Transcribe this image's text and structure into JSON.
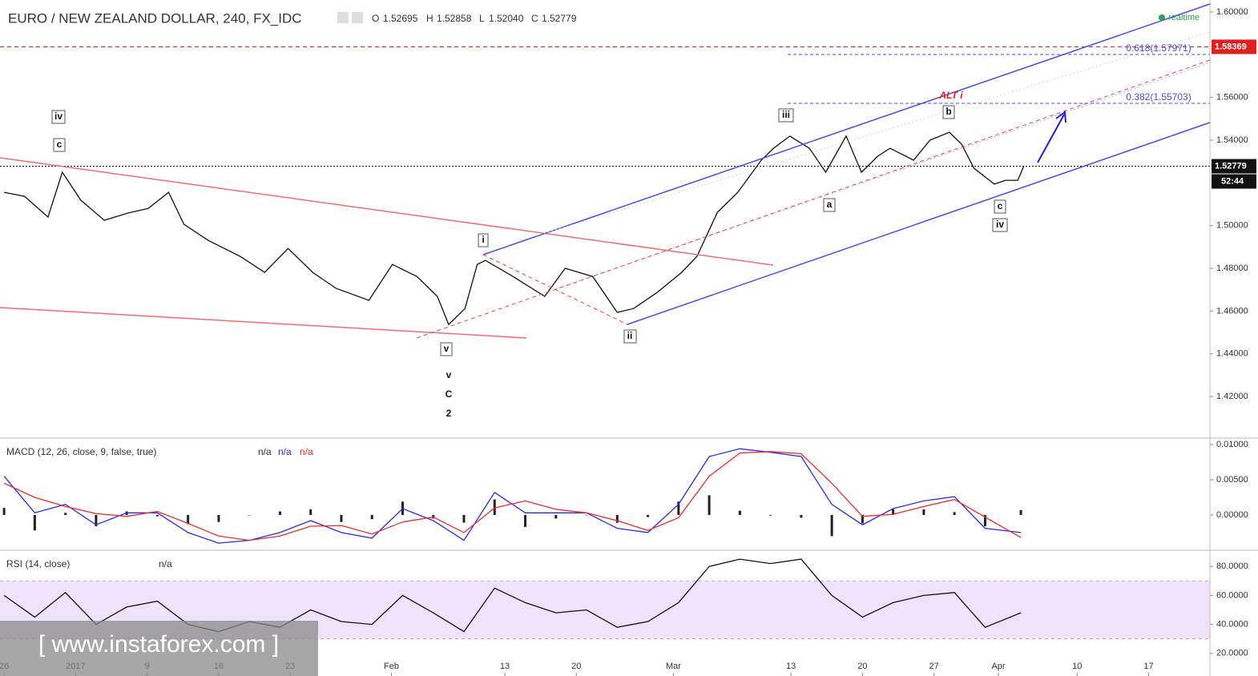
{
  "header": {
    "symbol": "EURO / NEW ZEALAND DOLLAR, 240, FX_IDC",
    "o_label": "O",
    "o": "1.52695",
    "h_label": "H",
    "h": "1.52858",
    "l_label": "L",
    "l": "1.52040",
    "c_label": "C",
    "c": "1.52779",
    "realtime": "realtime",
    "countdown": "52:44",
    "watermark": "[ www.instaforex.com ]"
  },
  "annotations": [
    "iv",
    "c",
    "v",
    "i",
    "ii",
    "iii",
    "a",
    "b",
    "ALT i",
    "c",
    "iv",
    "v",
    "C",
    "2",
    "0.618(1.57971)",
    "0.382(1.55703)"
  ],
  "chart_data": [
    {
      "type": "line",
      "xlim": [
        -0.4,
        118
      ],
      "ylim": [
        1.4009,
        1.6056
      ],
      "yticks": [
        {
          "value": 1.6,
          "label": "1.60000"
        },
        {
          "value": 1.56,
          "label": "1.56000"
        },
        {
          "value": 1.54,
          "label": "1.54000"
        },
        {
          "value": 1.5,
          "label": "1.50000"
        },
        {
          "value": 1.48,
          "label": "1.48000"
        },
        {
          "value": 1.46,
          "label": "1.46000"
        },
        {
          "value": 1.44,
          "label": "1.44000"
        },
        {
          "value": 1.42,
          "label": "1.42000"
        }
      ],
      "price_lines": [
        {
          "value": 1.58369,
          "label": "1.58369",
          "color": "#e02020"
        },
        {
          "value": 1.52779,
          "label": "1.52779",
          "color": "#111111"
        }
      ],
      "series": [
        {
          "name": "EURNZD",
          "color": "#111111",
          "x": [
            0,
            2,
            4.3,
            5.7,
            7.5,
            9.8,
            12.2,
            14.1,
            16.1,
            17.6,
            20,
            23.1,
            25.5,
            27.8,
            30.2,
            32.5,
            35.7,
            38,
            40.4,
            42.4,
            43.5,
            45.1,
            46.3,
            47.1,
            49.8,
            52.9,
            54.9,
            57.6,
            60,
            61.6,
            63.9,
            66.3,
            67.8,
            69.8,
            71.8,
            74.1,
            75.3,
            76.9,
            78.8,
            80.4,
            82.4,
            83.9,
            85.5,
            86.7,
            89,
            90.6,
            92.5,
            93.7,
            94.9,
            96.9,
            98,
            99.2,
            99.8
          ],
          "values": [
            1.5156,
            1.5137,
            1.504,
            1.525,
            1.5119,
            1.5025,
            1.506,
            1.508,
            1.5156,
            1.5006,
            1.493,
            1.4856,
            1.4781,
            1.4893,
            1.4781,
            1.4706,
            1.465,
            1.4818,
            1.4762,
            1.4669,
            1.4537,
            1.4612,
            1.4818,
            1.4837,
            1.4762,
            1.4669,
            1.48,
            1.4762,
            1.4594,
            1.4612,
            1.4687,
            1.4781,
            1.4856,
            1.5062,
            1.5156,
            1.5306,
            1.5362,
            1.5419,
            1.5362,
            1.525,
            1.5419,
            1.525,
            1.5325,
            1.5362,
            1.5306,
            1.54,
            1.5437,
            1.5381,
            1.5269,
            1.5194,
            1.5212,
            1.5212,
            1.528
          ]
        }
      ]
    },
    {
      "type": "line",
      "title": "MACD (12, 26, close, 9, false, true)",
      "status": [
        "n/a",
        "n/a",
        "n/a"
      ],
      "xlim": [
        -0.4,
        118
      ],
      "ylim": [
        -0.0049,
        0.0108
      ],
      "yticks": [
        {
          "value": 0.01,
          "label": "0.01000"
        },
        {
          "value": 0.005,
          "label": "0.00500"
        },
        {
          "value": 0,
          "label": "0.00000"
        }
      ],
      "x": [
        0,
        3,
        6,
        9,
        12,
        15,
        18,
        21,
        24,
        27,
        30,
        33,
        36,
        39,
        42,
        45,
        48,
        51,
        54,
        57,
        60,
        63,
        66,
        69,
        72,
        75,
        78,
        81,
        84,
        87,
        90,
        93,
        96,
        99.5
      ],
      "series": [
        {
          "name": "Histogram",
          "type": "bar",
          "color": "#222222",
          "values": [
            0.001,
            -0.0022,
            0.0003,
            -0.0016,
            0.0005,
            -0.0002,
            -0.0013,
            -0.001,
            0,
            0.0005,
            0.0008,
            -0.001,
            -0.0006,
            0.0019,
            -0.0005,
            -0.0011,
            0.0022,
            -0.0017,
            -0.0005,
            0,
            -0.0011,
            -0.0003,
            0.0019,
            0.0028,
            0.0006,
            -0.0001,
            -0.0004,
            -0.003,
            -0.0012,
            0.0008,
            0.0008,
            0.0004,
            -0.0016,
            0.0007
          ]
        },
        {
          "name": "MACD",
          "type": "line",
          "color": "#2a2aee",
          "values": [
            0.0055,
            0.0003,
            0.0015,
            -0.0014,
            0.0003,
            0.0003,
            -0.0025,
            -0.004,
            -0.0036,
            -0.0025,
            -0.0008,
            -0.0025,
            -0.0033,
            0.0009,
            -0.0008,
            -0.0036,
            0.0032,
            0.0003,
            0.0003,
            0.0003,
            -0.0019,
            -0.0025,
            0.0015,
            0.0083,
            0.0094,
            0.0089,
            0.0083,
            0.0015,
            -0.0014,
            0.0009,
            0.002,
            0.0026,
            -0.0019,
            -0.0025
          ]
        },
        {
          "name": "Signal",
          "type": "line",
          "color": "#ee2a2a",
          "values": [
            0.0045,
            0.0025,
            0.0012,
            0.0002,
            -0.0002,
            0.0005,
            -0.0012,
            -0.003,
            -0.0036,
            -0.003,
            -0.0016,
            -0.0015,
            -0.0027,
            -0.001,
            -0.0003,
            -0.0025,
            0.001,
            0.002,
            0.0008,
            0.0003,
            -0.0008,
            -0.0022,
            -0.0004,
            0.0055,
            0.0088,
            0.009,
            0.0087,
            0.0045,
            -0.0002,
            0.0001,
            0.0012,
            0.0022,
            -0.0003,
            -0.0032
          ]
        }
      ]
    },
    {
      "type": "line",
      "title": "RSI (14, close)",
      "status": [
        "n/a"
      ],
      "xlim": [
        -0.4,
        118
      ],
      "ylim": [
        4.4,
        90.6
      ],
      "band": [
        30,
        70
      ],
      "band_color": "#efe3fb",
      "yticks": [
        {
          "value": 80,
          "label": "80.0000"
        },
        {
          "value": 60,
          "label": "60.0000"
        },
        {
          "value": 40,
          "label": "40.0000"
        },
        {
          "value": 20,
          "label": "20.0000"
        }
      ],
      "xticks": [
        {
          "value": 0,
          "label": "26"
        },
        {
          "value": 7,
          "label": "2017"
        },
        {
          "value": 14,
          "label": "9"
        },
        {
          "value": 21,
          "label": "16"
        },
        {
          "value": 28,
          "label": "23"
        },
        {
          "value": 37.9,
          "label": "Feb"
        },
        {
          "value": 49,
          "label": "13"
        },
        {
          "value": 56,
          "label": "20"
        },
        {
          "value": 65.5,
          "label": "Mar"
        },
        {
          "value": 77,
          "label": "13"
        },
        {
          "value": 84,
          "label": "20"
        },
        {
          "value": 91,
          "label": "27"
        },
        {
          "value": 97.3,
          "label": "Apr"
        },
        {
          "value": 105,
          "label": "10"
        },
        {
          "value": 112,
          "label": "17"
        }
      ],
      "x": [
        0,
        3,
        6,
        9,
        12,
        15,
        18,
        21,
        24,
        27,
        30,
        33,
        36,
        39,
        42,
        45,
        48,
        51,
        54,
        57,
        60,
        63,
        66,
        69,
        72,
        75,
        78,
        81,
        84,
        87,
        90,
        93,
        96,
        99.5
      ],
      "series": [
        {
          "name": "RSI",
          "type": "line",
          "color": "#111111",
          "values": [
            60,
            45,
            62,
            40,
            52,
            56,
            40,
            35,
            42,
            38,
            50,
            42,
            40,
            60,
            48,
            35,
            65,
            55,
            48,
            50,
            38,
            42,
            55,
            80,
            85,
            82,
            85,
            60,
            45,
            55,
            60,
            62,
            38,
            48
          ]
        }
      ]
    }
  ]
}
